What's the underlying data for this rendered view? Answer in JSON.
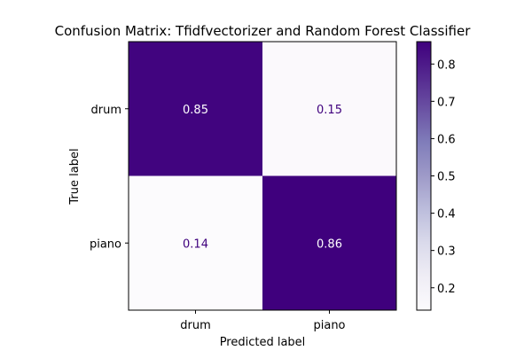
{
  "chart_data": {
    "type": "heatmap",
    "title": "Confusion Matrix: Tfidfvectorizer and Random Forest Classifier",
    "xlabel": "Predicted label",
    "ylabel": "True label",
    "x_categories": [
      "drum",
      "piano"
    ],
    "y_categories": [
      "drum",
      "piano"
    ],
    "values": [
      [
        0.85,
        0.15
      ],
      [
        0.14,
        0.86
      ]
    ],
    "value_labels": [
      [
        "0.85",
        "0.15"
      ],
      [
        "0.14",
        "0.86"
      ]
    ],
    "colormap": "Purples",
    "colorbar": {
      "range": [
        0.14,
        0.86
      ],
      "ticks": [
        0.2,
        0.3,
        0.4,
        0.5,
        0.6,
        0.7,
        0.8
      ],
      "tick_labels": [
        "0.2",
        "0.3",
        "0.4",
        "0.5",
        "0.6",
        "0.7",
        "0.8"
      ]
    },
    "colors": {
      "low": "#fcfbfd",
      "high": "#3f007d",
      "text_on_dark": "#ffffff",
      "text_on_light": "#3f007d"
    },
    "grid": false
  }
}
